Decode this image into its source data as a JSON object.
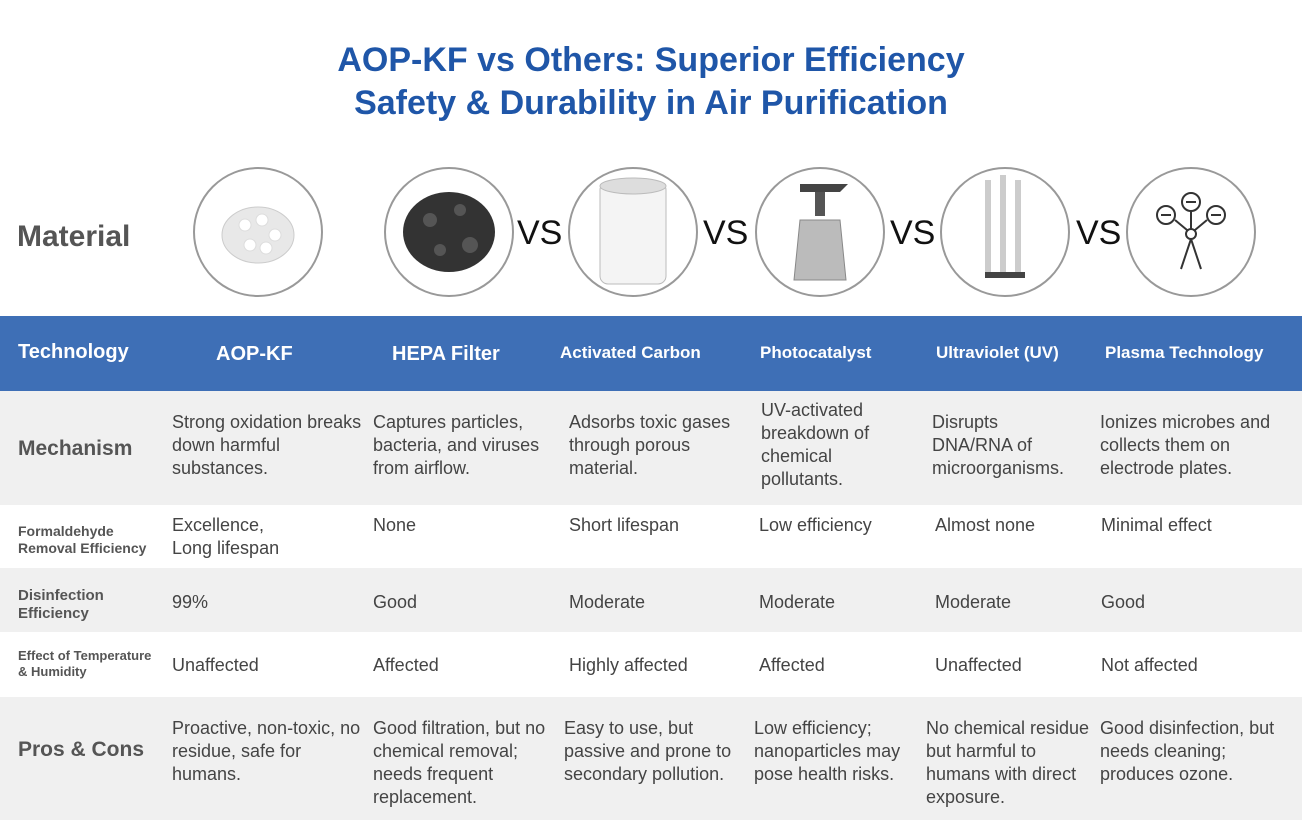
{
  "header": {
    "title_lines": [
      "AOP-KF vs Others: Superior Efficiency",
      "Safety & Durability in Air Purification"
    ]
  },
  "material": {
    "label": "Material",
    "vs": [
      "VS",
      "VS",
      "VS",
      "VS"
    ]
  },
  "table": {
    "header": [
      "Technology",
      "AOP-KF",
      "HEPA Filter",
      "Activated Carbon",
      "Photocatalyst",
      "Ultraviolet (UV)",
      "Plasma Technology"
    ],
    "rows": [
      [
        "Mechanism",
        "Strong oxidation breaks down harmful substances.",
        "Captures particles, bacteria, and viruses from airflow.",
        "Adsorbs toxic gases through porous material.",
        "UV-activated breakdown of chemical pollutants.",
        "Disrupts DNA/RNA of microorganisms.",
        "Ionizes microbes and collects them on electrode plates."
      ],
      [
        "Formaldehyde Removal Efficiency",
        "Excellence, Long lifespan",
        "None",
        "Short lifespan",
        "Low efficiency",
        "Almost none",
        "Minimal effect"
      ],
      [
        "Disinfection Efficiency",
        "99%",
        "Good",
        "Moderate",
        "Moderate",
        "Moderate",
        "Good"
      ],
      [
        "Effect of Temperature & Humidity",
        "Unaffected",
        "Affected",
        "Highly affected",
        "Affected",
        "Unaffected",
        "Not affected"
      ],
      [
        "Pros & Cons",
        "Proactive, non-toxic, no residue, safe for humans.",
        "Good filtration, but no chemical removal; needs frequent replacement.",
        "Easy to use, but passive and prone to secondary pollution.",
        "Low efficiency; nanoparticles may pose health risks.",
        "No chemical residue but harmful to humans with direct exposure.",
        "Good disinfection, but needs cleaning; produces ozone."
      ]
    ]
  }
}
